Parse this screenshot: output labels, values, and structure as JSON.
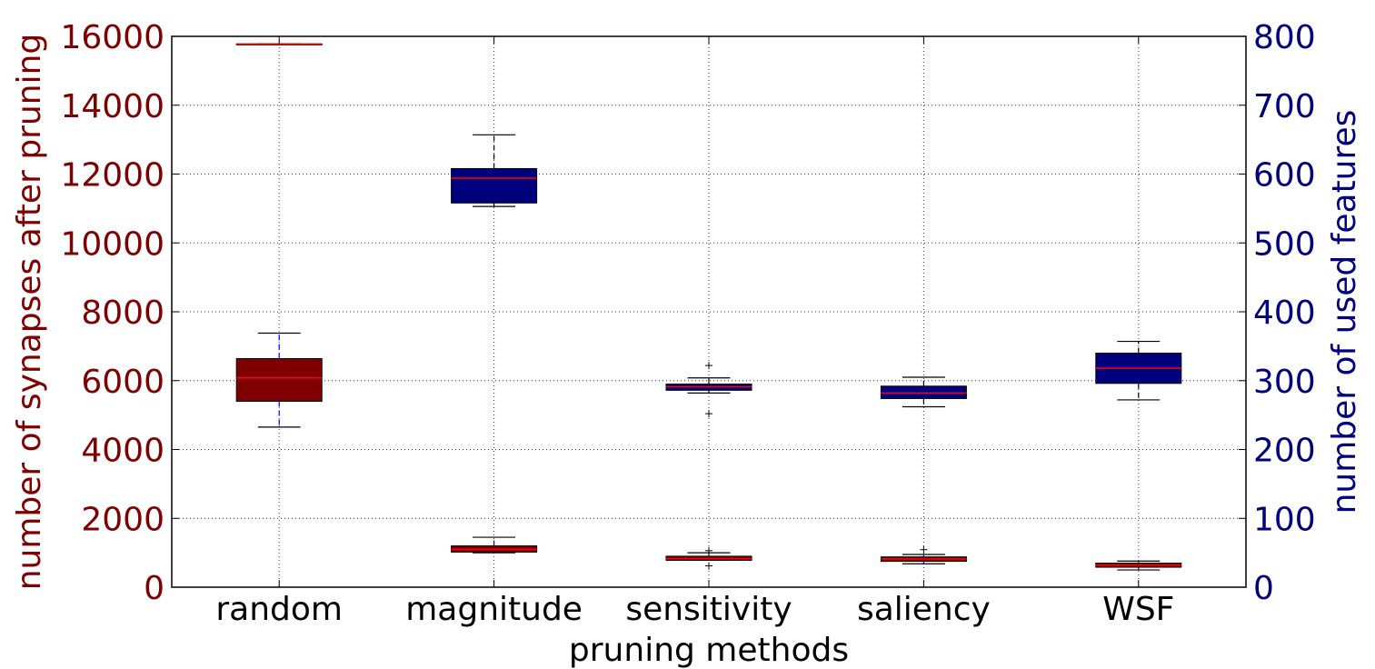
{
  "chart_data": {
    "type": "box",
    "xlabel": "pruning methods",
    "ylabel_left": "number of synapses after pruning",
    "ylabel_right": "number of used features",
    "categories": [
      "random",
      "magnitude",
      "sensitivity",
      "saliency",
      "WSF"
    ],
    "y_left": {
      "lim": [
        0,
        16000
      ],
      "ticks": [
        0,
        2000,
        4000,
        6000,
        8000,
        10000,
        12000,
        14000,
        16000
      ]
    },
    "y_right": {
      "lim": [
        0,
        800
      ],
      "ticks": [
        0,
        100,
        200,
        300,
        400,
        500,
        600,
        700,
        800
      ]
    },
    "grid": true,
    "colors": {
      "left": "#7f0000",
      "right": "#00007f",
      "median": "#ff0000",
      "whisker_synapses": "#0000ff"
    },
    "series": [
      {
        "axis": "left",
        "boxes": [
          {
            "min": 4650,
            "q1": 5400,
            "median": 6080,
            "q3": 6640,
            "max": 7380,
            "outliers": []
          },
          {
            "min": 1000,
            "q1": 1020,
            "median": 1100,
            "q3": 1200,
            "max": 1450,
            "outliers": []
          },
          {
            "min": 780,
            "q1": 780,
            "median": 830,
            "q3": 900,
            "max": 1000,
            "outliers": [
              1060,
              620
            ]
          },
          {
            "min": 680,
            "q1": 750,
            "median": 820,
            "q3": 880,
            "max": 950,
            "outliers": [
              1090
            ]
          },
          {
            "min": 500,
            "q1": 580,
            "median": 640,
            "q3": 700,
            "max": 760,
            "outliers": []
          }
        ]
      },
      {
        "axis": "right",
        "boxes": [
          {
            "min": 789,
            "q1": 789,
            "median": 789,
            "q3": 789,
            "max": 789,
            "outliers": []
          },
          {
            "min": 553,
            "q1": 558,
            "median": 594,
            "q3": 608,
            "max": 657,
            "outliers": []
          },
          {
            "min": 282,
            "q1": 286,
            "median": 291,
            "q3": 295,
            "max": 304,
            "outliers": [
              322,
              252
            ]
          },
          {
            "min": 262,
            "q1": 274,
            "median": 282,
            "q3": 292,
            "max": 305,
            "outliers": []
          },
          {
            "min": 272,
            "q1": 296,
            "median": 318,
            "q3": 340,
            "max": 357,
            "outliers": []
          }
        ]
      }
    ]
  }
}
